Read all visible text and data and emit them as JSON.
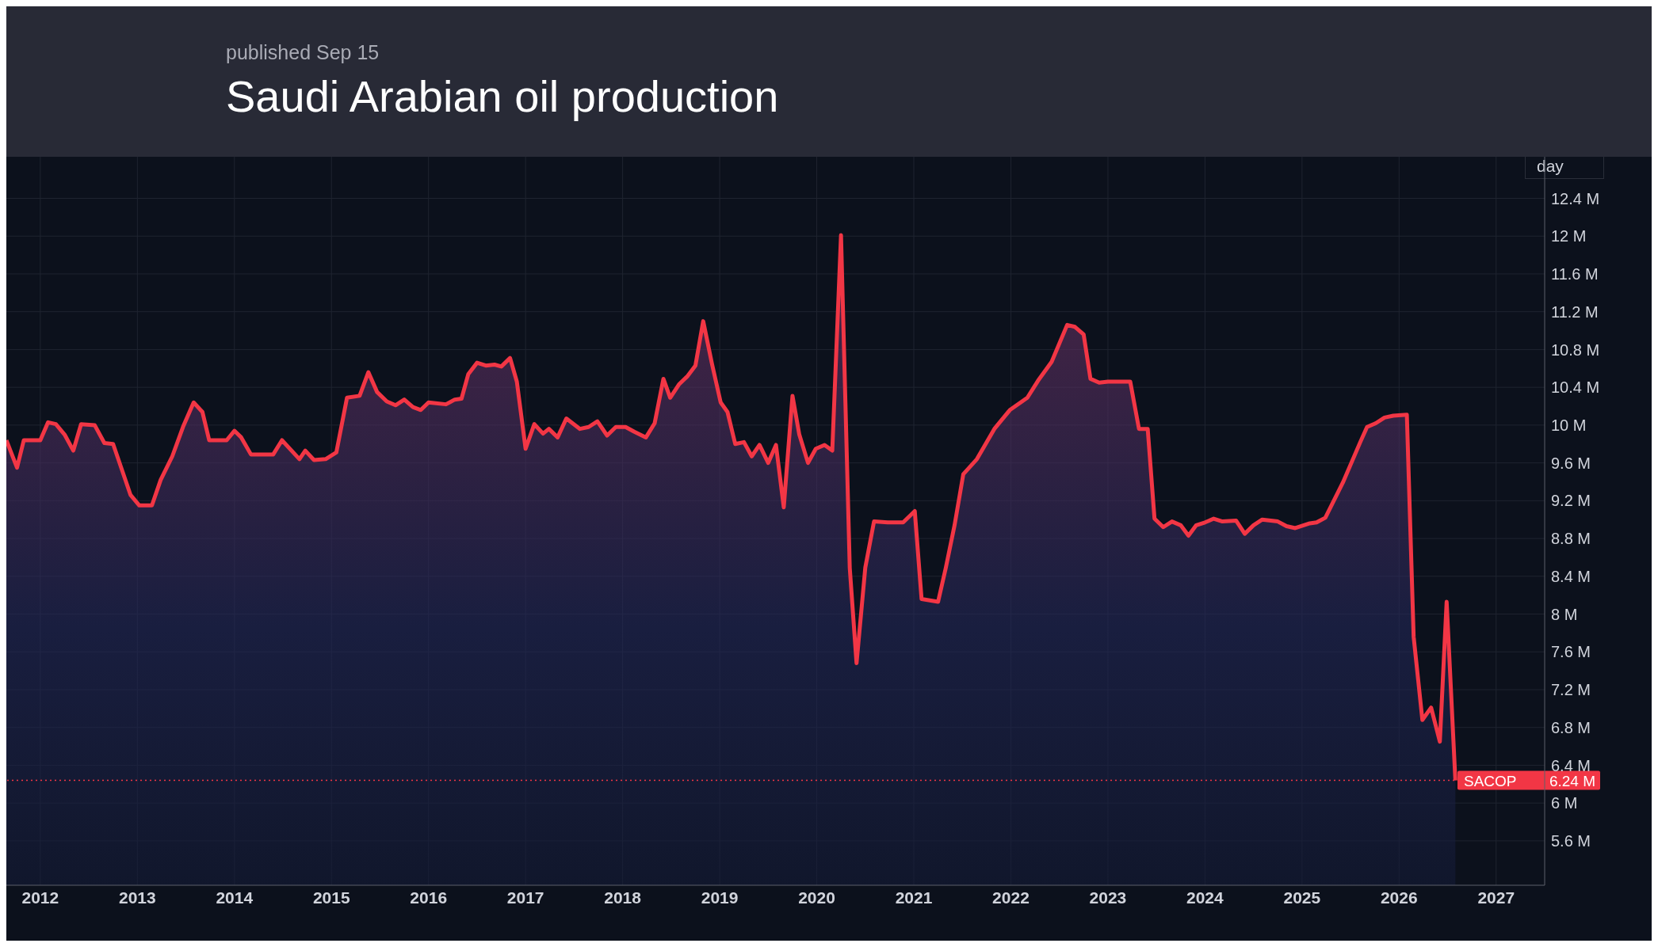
{
  "chart_data": {
    "type": "area",
    "title": "Saudi Arabian oil production",
    "subtitle": "published Sep 15",
    "ylabel": "day",
    "x": [
      2011.65,
      2011.76,
      2011.83,
      2012.0,
      2012.08,
      2012.16,
      2012.25,
      2012.34,
      2012.42,
      2012.56,
      2012.66,
      2012.75,
      2012.93,
      2013.02,
      2013.15,
      2013.24,
      2013.36,
      2013.47,
      2013.58,
      2013.67,
      2013.74,
      2013.92,
      2014.0,
      2014.07,
      2014.17,
      2014.4,
      2014.49,
      2014.67,
      2014.73,
      2014.82,
      2014.94,
      2015.05,
      2015.16,
      2015.29,
      2015.38,
      2015.47,
      2015.57,
      2015.66,
      2015.75,
      2015.84,
      2015.92,
      2016.0,
      2016.18,
      2016.27,
      2016.34,
      2016.41,
      2016.5,
      2016.59,
      2016.68,
      2016.75,
      2016.84,
      2016.91,
      2017.0,
      2017.09,
      2017.18,
      2017.24,
      2017.33,
      2017.42,
      2017.56,
      2017.65,
      2017.74,
      2017.84,
      2017.93,
      2018.03,
      2018.12,
      2018.24,
      2018.33,
      2018.42,
      2018.49,
      2018.58,
      2018.67,
      2018.75,
      2018.83,
      2018.92,
      2019.01,
      2019.08,
      2019.16,
      2019.25,
      2019.33,
      2019.41,
      2019.5,
      2019.58,
      2019.66,
      2019.75,
      2019.82,
      2019.91,
      2019.99,
      2020.08,
      2020.16,
      2020.25,
      2020.34,
      2020.41,
      2020.5,
      2020.59,
      2020.73,
      2020.89,
      2021.01,
      2021.08,
      2021.25,
      2021.33,
      2021.42,
      2021.51,
      2021.65,
      2021.83,
      2021.99,
      2022.17,
      2022.28,
      2022.42,
      2022.58,
      2022.66,
      2022.75,
      2022.82,
      2022.91,
      2023.0,
      2023.12,
      2023.23,
      2023.32,
      2023.41,
      2023.48,
      2023.57,
      2023.66,
      2023.75,
      2023.83,
      2023.91,
      2024.0,
      2024.09,
      2024.18,
      2024.32,
      2024.41,
      2024.5,
      2024.59,
      2024.75,
      2024.84,
      2024.93,
      2025.08,
      2025.15,
      2025.24,
      2025.42,
      2025.6,
      2025.67,
      2025.76,
      2025.85,
      2025.94,
      2026.08,
      2026.15,
      2026.24,
      2026.33,
      2026.42,
      2026.49,
      2026.58
    ],
    "series": [
      {
        "name": "SACOP",
        "color": "#f23645",
        "values": [
          9.84,
          9.55,
          9.84,
          9.84,
          10.03,
          10.01,
          9.9,
          9.73,
          10.01,
          10.0,
          9.81,
          9.8,
          9.26,
          9.15,
          9.15,
          9.42,
          9.67,
          9.98,
          10.24,
          10.14,
          9.84,
          9.84,
          9.94,
          9.87,
          9.69,
          9.69,
          9.84,
          9.64,
          9.73,
          9.63,
          9.64,
          9.71,
          10.29,
          10.31,
          10.56,
          10.35,
          10.25,
          10.21,
          10.27,
          10.19,
          10.16,
          10.24,
          10.22,
          10.27,
          10.28,
          10.54,
          10.66,
          10.63,
          10.64,
          10.62,
          10.71,
          10.46,
          9.75,
          10.01,
          9.91,
          9.96,
          9.87,
          10.07,
          9.96,
          9.98,
          10.04,
          9.89,
          9.98,
          9.98,
          9.93,
          9.87,
          10.02,
          10.49,
          10.29,
          10.43,
          10.52,
          10.63,
          11.1,
          10.65,
          10.24,
          10.14,
          9.8,
          9.82,
          9.67,
          9.79,
          9.6,
          9.79,
          9.13,
          10.31,
          9.9,
          9.6,
          9.75,
          9.79,
          9.73,
          12.01,
          8.49,
          7.48,
          8.49,
          8.98,
          8.97,
          8.97,
          9.09,
          8.16,
          8.13,
          8.49,
          8.94,
          9.48,
          9.64,
          9.96,
          10.16,
          10.29,
          10.47,
          10.67,
          11.06,
          11.04,
          10.96,
          10.49,
          10.45,
          10.46,
          10.46,
          10.46,
          9.96,
          9.96,
          9.01,
          8.92,
          8.98,
          8.94,
          8.83,
          8.94,
          8.97,
          9.01,
          8.98,
          8.99,
          8.85,
          8.94,
          9.0,
          8.98,
          8.93,
          8.91,
          8.96,
          8.97,
          9.02,
          9.39,
          9.82,
          9.98,
          10.02,
          10.08,
          10.1,
          10.11,
          7.76,
          6.88,
          7.01,
          6.65,
          8.13,
          6.24
        ]
      }
    ],
    "xlim": [
      2011.65,
      2027.5
    ],
    "xticks": [
      2012,
      2013,
      2014,
      2015,
      2016,
      2017,
      2018,
      2019,
      2020,
      2021,
      2022,
      2023,
      2024,
      2025,
      2026,
      2027
    ],
    "ylim": [
      5.13,
      12.84
    ],
    "yticks": [
      {
        "value": 5.6,
        "label": "5.6 M"
      },
      {
        "value": 6,
        "label": "6 M"
      },
      {
        "value": 6.4,
        "label": "6.4 M"
      },
      {
        "value": 6.8,
        "label": "6.8 M"
      },
      {
        "value": 7.2,
        "label": "7.2 M"
      },
      {
        "value": 7.6,
        "label": "7.6 M"
      },
      {
        "value": 8,
        "label": "8 M"
      },
      {
        "value": 8.4,
        "label": "8.4 M"
      },
      {
        "value": 8.8,
        "label": "8.8 M"
      },
      {
        "value": 9.2,
        "label": "9.2 M"
      },
      {
        "value": 9.6,
        "label": "9.6 M"
      },
      {
        "value": 10,
        "label": "10 M"
      },
      {
        "value": 10.4,
        "label": "10.4 M"
      },
      {
        "value": 10.8,
        "label": "10.8 M"
      },
      {
        "value": 11.2,
        "label": "11.2 M"
      },
      {
        "value": 11.6,
        "label": "11.6 M"
      },
      {
        "value": 12,
        "label": "12 M"
      },
      {
        "value": 12.4,
        "label": "12.4 M"
      }
    ],
    "ref_lines": [
      {
        "axis": "y",
        "value": 6.24,
        "label": "6.24 M",
        "color": "#f23645",
        "line_style": "dotted"
      }
    ],
    "grid": true,
    "line_style": "solid"
  }
}
